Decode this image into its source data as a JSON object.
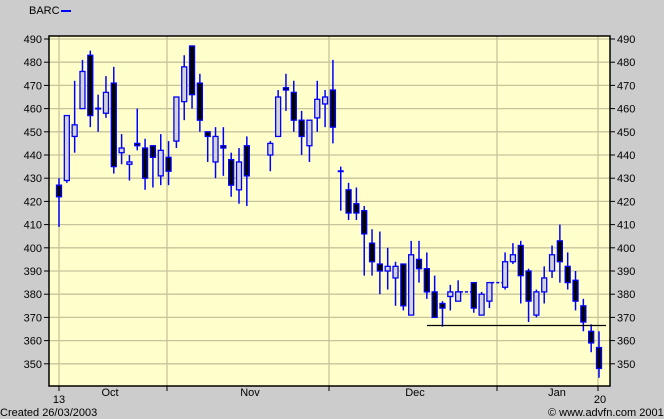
{
  "legend": {
    "symbol": "BARC",
    "color": "#0000ff"
  },
  "footer": {
    "created": "Created 26/03/2003",
    "copyright": "© www.advfn.com 2001"
  },
  "colors": {
    "background": "#cccccc",
    "plot": "#ffffcc",
    "grid": "#c8c39b",
    "candle_outline": "#0000ff",
    "down_fill": "#000000",
    "up_fill": "#d4d4d4",
    "support_line": "#000000"
  },
  "chart_data": {
    "type": "candlestick",
    "title": "",
    "ylim": [
      340,
      492
    ],
    "yticks": [
      350,
      360,
      370,
      380,
      390,
      400,
      410,
      420,
      430,
      440,
      450,
      460,
      470,
      480,
      490
    ],
    "xtick_labels": [
      "13",
      "Oct",
      "Nov",
      "Dec",
      "Jan",
      "20"
    ],
    "grid": true,
    "support_level": 366.5,
    "candle_format": [
      "open",
      "high",
      "low",
      "close"
    ],
    "candles": [
      [
        427,
        430,
        409,
        422
      ],
      [
        429,
        457,
        428,
        457
      ],
      [
        448,
        472,
        441,
        453
      ],
      [
        460,
        481,
        460,
        476
      ],
      [
        483,
        485,
        452,
        457
      ],
      [
        460,
        466,
        450,
        460
      ],
      [
        458,
        474,
        456,
        467
      ],
      [
        471,
        478,
        432,
        435
      ],
      [
        441,
        449,
        436,
        443
      ],
      [
        436,
        440,
        429,
        437
      ],
      [
        445,
        460,
        442,
        444
      ],
      [
        443,
        447,
        425,
        430
      ],
      [
        444,
        444,
        426,
        439
      ],
      [
        431,
        449,
        427,
        442
      ],
      [
        439,
        446,
        427,
        433
      ],
      [
        446,
        465,
        443,
        465
      ],
      [
        463,
        483,
        455,
        478
      ],
      [
        487,
        487,
        460,
        466
      ],
      [
        471,
        475,
        450,
        455
      ],
      [
        450,
        450,
        437,
        448
      ],
      [
        437,
        452,
        430,
        448
      ],
      [
        444,
        452,
        431,
        443
      ],
      [
        438,
        441,
        422,
        427
      ],
      [
        425,
        443,
        419,
        437
      ],
      [
        444,
        448,
        418,
        431
      ],
      null,
      null,
      [
        440,
        446,
        433,
        445
      ],
      [
        448,
        468,
        448,
        465
      ],
      [
        469,
        475,
        459,
        468
      ],
      [
        467,
        472,
        450,
        455
      ],
      [
        455,
        459,
        440,
        448
      ],
      [
        444,
        455,
        437,
        455
      ],
      [
        456,
        472,
        450,
        464
      ],
      [
        462,
        468,
        452,
        465
      ],
      [
        468,
        481,
        445,
        452
      ],
      [
        433,
        435,
        416,
        433
      ],
      [
        425,
        428,
        412,
        415
      ],
      [
        419,
        426,
        412,
        415
      ],
      [
        416,
        418,
        388,
        406
      ],
      [
        402,
        408,
        388,
        394
      ],
      [
        393,
        407,
        380,
        390
      ],
      [
        390,
        400,
        382,
        392
      ],
      [
        387,
        394,
        375,
        392
      ],
      [
        393,
        393,
        373,
        375
      ],
      [
        371,
        403,
        371,
        397
      ],
      [
        395,
        403,
        385,
        391
      ],
      [
        391,
        398,
        378,
        381
      ],
      [
        381,
        388,
        370,
        370
      ],
      [
        376,
        377,
        366,
        374
      ],
      [
        379,
        384,
        373,
        381
      ],
      [
        377,
        386,
        377,
        381
      ],
      [
        381,
        381,
        381,
        381
      ],
      [
        385,
        385,
        372,
        374
      ],
      [
        371,
        381,
        371,
        380
      ],
      [
        377,
        385,
        374,
        385
      ],
      [
        385,
        385,
        385,
        385
      ],
      [
        383,
        398,
        382,
        394
      ],
      [
        394,
        402,
        393,
        397
      ],
      [
        401,
        403,
        376,
        388
      ],
      [
        390,
        391,
        368,
        377
      ],
      [
        371,
        382,
        370,
        381
      ],
      [
        381,
        392,
        376,
        387
      ],
      [
        390,
        401,
        387,
        397
      ],
      [
        403,
        410,
        385,
        394
      ],
      [
        392,
        398,
        382,
        385
      ],
      [
        386,
        390,
        373,
        377
      ],
      [
        375,
        378,
        364,
        368
      ],
      [
        364,
        367,
        355,
        359
      ],
      [
        357,
        364,
        344,
        348
      ]
    ]
  }
}
